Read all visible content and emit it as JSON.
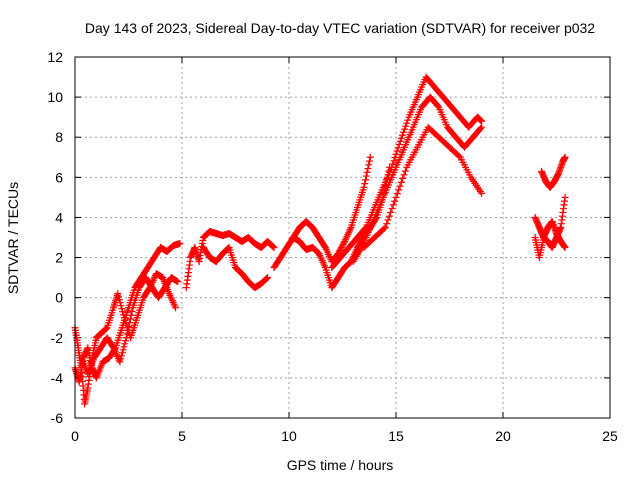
{
  "chart_data": {
    "type": "scatter",
    "title": "Day 143 of 2023, Sidereal Day-to-day VTEC variation (SDTVAR) for receiver p032",
    "xlabel": "GPS time / hours",
    "ylabel": "SDTVAR / TECUs",
    "xlim": [
      0,
      25
    ],
    "ylim": [
      -6,
      12
    ],
    "xticks": [
      0,
      5,
      10,
      15,
      20,
      25
    ],
    "yticks": [
      -6,
      -4,
      -2,
      0,
      2,
      4,
      6,
      8,
      10,
      12
    ],
    "xtick_labels": [
      "0",
      "5",
      "10",
      "15",
      "20",
      "25"
    ],
    "ytick_labels": [
      "-6",
      "-4",
      "-2",
      "0",
      "2",
      "4",
      "6",
      "8",
      "10",
      "12"
    ],
    "grid": true,
    "marker": "+",
    "color": "#ff0000",
    "series": [
      {
        "name": "track-a",
        "x": [
          0.0,
          0.2,
          0.4,
          0.6,
          0.8,
          1.0,
          1.3,
          1.6,
          1.9,
          2.2,
          2.5,
          2.8,
          3.1,
          3.4,
          3.7,
          4.0,
          4.3,
          4.6,
          4.9
        ],
        "y": [
          -3.5,
          -4.2,
          -3.0,
          -2.5,
          -3.5,
          -4.0,
          -3.2,
          -3.0,
          -2.5,
          -1.5,
          -0.5,
          0.5,
          1.0,
          1.5,
          2.0,
          2.5,
          2.3,
          2.6,
          2.7
        ]
      },
      {
        "name": "track-b",
        "x": [
          0.0,
          0.15,
          0.3,
          0.45,
          0.6,
          0.8,
          1.0,
          1.2,
          1.5,
          1.8,
          2.0,
          2.3,
          2.6,
          2.9,
          3.2,
          3.5,
          3.8,
          4.1,
          4.4,
          4.7
        ],
        "y": [
          -1.5,
          -2.5,
          -3.5,
          -5.3,
          -4.5,
          -3.0,
          -2.0,
          -1.8,
          -1.5,
          -0.5,
          0.2,
          -1.0,
          -2.0,
          -1.0,
          0.0,
          0.5,
          1.2,
          1.0,
          0.2,
          -0.5
        ]
      },
      {
        "name": "track-c",
        "x": [
          0.3,
          0.6,
          0.9,
          1.2,
          1.5,
          1.8,
          2.1,
          2.4,
          2.7,
          3.0,
          3.3,
          3.6,
          3.9,
          4.2,
          4.5,
          4.8
        ],
        "y": [
          -3.0,
          -3.8,
          -3.0,
          -2.5,
          -2.0,
          -2.5,
          -3.2,
          -2.0,
          -0.5,
          0.5,
          1.0,
          0.5,
          0.0,
          0.5,
          1.0,
          0.8
        ]
      },
      {
        "name": "track-d",
        "x": [
          5.2,
          5.4,
          5.6,
          5.8,
          6.0,
          6.3,
          6.6,
          6.9,
          7.2,
          7.5,
          7.8,
          8.1,
          8.4,
          8.7,
          9.0,
          9.3
        ],
        "y": [
          0.5,
          2.0,
          2.5,
          1.8,
          3.0,
          3.3,
          3.2,
          3.1,
          3.2,
          3.0,
          2.8,
          3.0,
          2.7,
          2.5,
          2.8,
          2.5
        ]
      },
      {
        "name": "track-e",
        "x": [
          6.0,
          6.3,
          6.6,
          6.9,
          7.2,
          7.5,
          7.8,
          8.1,
          8.4,
          8.7,
          9.0
        ],
        "y": [
          2.5,
          2.0,
          1.8,
          2.2,
          2.5,
          1.5,
          1.2,
          0.8,
          0.5,
          0.7,
          1.0
        ]
      },
      {
        "name": "track-f",
        "x": [
          9.3,
          9.6,
          9.9,
          10.2,
          10.5,
          10.8,
          11.1,
          11.4,
          11.7,
          12.0,
          12.3,
          12.6,
          12.9,
          13.2,
          13.5,
          13.8
        ],
        "y": [
          1.5,
          2.0,
          2.5,
          3.0,
          3.5,
          3.8,
          3.5,
          3.0,
          2.5,
          1.8,
          2.2,
          2.8,
          3.5,
          4.5,
          5.5,
          7.0
        ]
      },
      {
        "name": "track-g",
        "x": [
          10.2,
          10.5,
          10.8,
          11.1,
          11.4,
          11.7,
          12.0,
          12.3,
          12.6,
          12.9,
          13.2,
          13.5,
          13.8,
          14.1,
          14.4,
          14.7
        ],
        "y": [
          3.0,
          2.8,
          2.4,
          2.5,
          2.2,
          1.5,
          0.5,
          1.0,
          1.5,
          1.8,
          2.5,
          3.0,
          3.5,
          4.0,
          5.0,
          6.5
        ]
      },
      {
        "name": "track-h",
        "x": [
          12.0,
          12.4,
          12.8,
          13.2,
          13.6,
          14.0,
          14.4,
          14.8,
          15.2,
          15.6,
          16.0,
          16.4,
          16.8,
          17.2,
          17.6,
          18.0,
          18.4,
          18.8,
          19.0
        ],
        "y": [
          1.5,
          2.0,
          2.5,
          3.0,
          3.5,
          4.5,
          5.5,
          6.5,
          7.8,
          9.0,
          10.0,
          11.0,
          10.5,
          10.0,
          9.5,
          9.0,
          8.5,
          9.0,
          8.8
        ]
      },
      {
        "name": "track-i",
        "x": [
          13.0,
          13.4,
          13.8,
          14.2,
          14.6,
          15.0,
          15.4,
          15.8,
          16.2,
          16.6,
          17.0,
          17.4,
          17.8,
          18.2,
          18.6,
          19.0
        ],
        "y": [
          1.8,
          2.5,
          3.5,
          4.5,
          5.5,
          6.5,
          7.5,
          8.5,
          9.5,
          10.0,
          9.5,
          8.5,
          8.0,
          7.5,
          8.0,
          8.5
        ]
      },
      {
        "name": "track-j",
        "x": [
          13.5,
          14.0,
          14.5,
          15.0,
          15.5,
          16.0,
          16.5,
          17.0,
          17.5,
          18.0,
          18.5,
          19.0
        ],
        "y": [
          2.5,
          3.0,
          3.5,
          5.0,
          6.5,
          7.5,
          8.5,
          8.0,
          7.5,
          7.0,
          6.0,
          5.2
        ]
      },
      {
        "name": "track-k",
        "x": [
          21.5,
          21.7,
          21.9,
          22.1,
          22.3,
          22.5,
          22.7,
          22.9
        ],
        "y": [
          4.0,
          3.5,
          3.0,
          2.8,
          2.5,
          3.0,
          3.5,
          5.0
        ]
      },
      {
        "name": "track-l",
        "x": [
          21.5,
          21.7,
          21.9,
          22.1,
          22.3,
          22.5,
          22.7,
          22.9
        ],
        "y": [
          3.0,
          2.0,
          3.0,
          3.5,
          3.8,
          3.2,
          2.8,
          2.5
        ]
      },
      {
        "name": "track-m",
        "x": [
          21.8,
          22.0,
          22.2,
          22.4,
          22.6,
          22.8,
          22.9
        ],
        "y": [
          6.3,
          5.8,
          5.5,
          5.8,
          6.2,
          6.8,
          7.0
        ]
      }
    ]
  }
}
